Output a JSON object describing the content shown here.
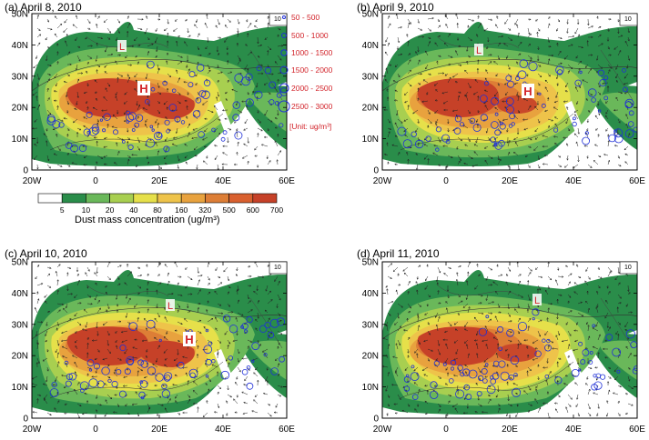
{
  "panels": [
    {
      "title": "(a) April 8, 2010",
      "h_label": "H",
      "l_label": "L",
      "vector_ref": "10"
    },
    {
      "title": "(b) April 9, 2010",
      "h_label": "H",
      "l_label": "L",
      "vector_ref": "10"
    },
    {
      "title": "(c) April 10, 2010",
      "h_label": "H",
      "l_label": "L",
      "vector_ref": "10"
    },
    {
      "title": "(d) April 11, 2010",
      "h_label": "H",
      "l_label": "L",
      "vector_ref": "10"
    }
  ],
  "lat_ticks": [
    "0",
    "10N",
    "20N",
    "30N",
    "40N",
    "50N"
  ],
  "lon_ticks": [
    "20W",
    "0",
    "20E",
    "40E",
    "60E"
  ],
  "legend_circles": {
    "items": [
      "50 - 500",
      "500 - 1000",
      "1000 - 1500",
      "1500 - 2000",
      "2000 - 2500",
      "2500 - 3000"
    ],
    "unit": "[Unit: ug/m³]"
  },
  "colorbar": {
    "ticks": [
      "5",
      "10",
      "20",
      "40",
      "80",
      "160",
      "320",
      "500",
      "600",
      "700"
    ],
    "label": "Dust mass concentration (ug/m³)",
    "colors": [
      "#ffffff",
      "#2a8d4a",
      "#6ab85a",
      "#a8cf50",
      "#e6e04a",
      "#eec34a",
      "#e8a23e",
      "#dd7e36",
      "#d9602f",
      "#c64128"
    ]
  }
}
